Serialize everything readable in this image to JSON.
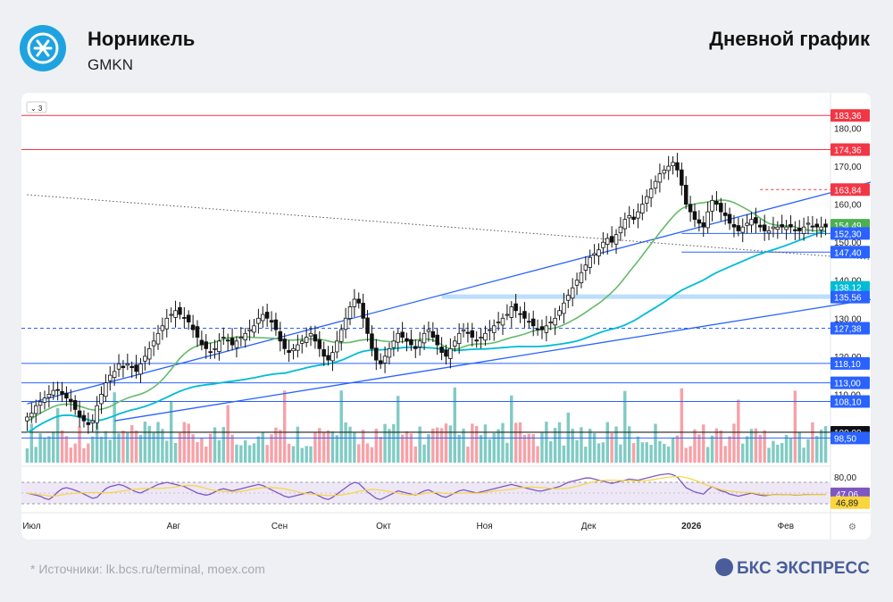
{
  "header": {
    "company_name": "Норникель",
    "ticker": "GMKN",
    "chart_title": "Дневной график",
    "logo_icon": "nornickel-logo-icon"
  },
  "footer": {
    "sources": "*  Источники: lk.bcs.ru/terminal, moex.com",
    "brand": "БКС ЭКСПРЕСС"
  },
  "colors": {
    "up": "#ffffff",
    "down": "#111111",
    "trend": "#2962ff",
    "red_level": "#f23645",
    "ma_green": "#66bb6a",
    "ma_cyan": "#00bcd4",
    "volume_up": "#80cbc4",
    "volume_down": "#f7a1a8",
    "rsi_line": "#7e57c2",
    "rsi_signal": "#f9d53f",
    "rsi_band": "#ede7f6"
  },
  "chart_data": {
    "type": "candlestick",
    "price_axis": {
      "ylim": [
        92,
        186
      ],
      "ticks": [
        "180,00",
        "170,00",
        "160,00",
        "150,00",
        "140,00",
        "130,00",
        "120,00",
        "110,00"
      ],
      "tick_values": [
        180,
        170,
        160,
        150,
        140,
        130,
        120,
        110
      ]
    },
    "x_axis": {
      "labels": [
        "Июл",
        "Авг",
        "Сен",
        "Окт",
        "Ноя",
        "Дек",
        "2026",
        "Фев"
      ],
      "label_index": [
        1,
        34,
        58,
        82,
        105,
        129,
        152,
        174
      ],
      "bold": [
        "2026"
      ]
    },
    "price_labels": [
      {
        "text": "183,36",
        "value": 183.36,
        "kind": "red"
      },
      {
        "text": "174,36",
        "value": 174.36,
        "kind": "red"
      },
      {
        "text": "163,84",
        "value": 163.84,
        "kind": "red"
      },
      {
        "text": "154,49",
        "value": 154.49,
        "kind": "green"
      },
      {
        "text": "152,30",
        "value": 152.3,
        "kind": "blue"
      },
      {
        "text": "147,40",
        "value": 147.4,
        "kind": "blue"
      },
      {
        "text": "138,12",
        "value": 138.12,
        "kind": "cyan"
      },
      {
        "text": "135,56",
        "value": 135.56,
        "kind": "blue"
      },
      {
        "text": "127,38",
        "value": 127.38,
        "kind": "blue"
      },
      {
        "text": "118,10",
        "value": 118.1,
        "kind": "blue"
      },
      {
        "text": "113,00",
        "value": 113.0,
        "kind": "blue"
      },
      {
        "text": "108,10",
        "value": 108.1,
        "kind": "blue"
      },
      {
        "text": "100,00",
        "value": 100.0,
        "kind": "black"
      },
      {
        "text": "98,50",
        "value": 98.5,
        "kind": "blue"
      }
    ],
    "levels": [
      {
        "value": 183.36,
        "style": "red"
      },
      {
        "value": 174.36,
        "style": "red"
      },
      {
        "value": 163.84,
        "style": "red-dash-right"
      },
      {
        "value": 152.3,
        "style": "blue-right-short"
      },
      {
        "value": 147.4,
        "style": "blue-right-short"
      },
      {
        "value": 135.56,
        "style": "blue-band"
      },
      {
        "value": 127.38,
        "style": "blue-dashed"
      },
      {
        "value": 118.1,
        "style": "blue"
      },
      {
        "value": 113.0,
        "style": "blue"
      },
      {
        "value": 108.1,
        "style": "blue"
      },
      {
        "value": 100.0,
        "style": "black"
      },
      {
        "value": 98.5,
        "style": "blue"
      }
    ],
    "trendlines": [
      {
        "from": [
          0,
          107.5
        ],
        "to": [
          199,
          167.5
        ],
        "style": "solid"
      },
      {
        "from": [
          20,
          103.0
        ],
        "to": [
          199,
          136.0
        ],
        "style": "solid"
      },
      {
        "from": [
          0,
          162.5
        ],
        "to": [
          199,
          145.0
        ],
        "style": "dotted"
      }
    ],
    "closes": [
      104,
      105,
      107,
      108,
      109,
      110,
      111,
      111,
      110,
      109,
      108,
      106,
      104,
      103,
      102,
      103,
      107,
      110,
      113,
      115,
      116,
      118,
      117,
      118,
      117,
      116,
      118,
      120,
      122,
      124,
      126,
      128,
      130,
      131,
      132,
      131,
      130,
      129,
      127,
      125,
      123,
      122,
      121,
      122,
      124,
      125,
      124,
      123,
      124,
      125,
      126,
      127,
      128,
      130,
      131,
      130,
      129,
      127,
      124,
      122,
      121,
      122,
      123,
      124,
      125,
      126,
      124,
      122,
      120,
      119,
      121,
      124,
      127,
      130,
      133,
      135,
      134,
      130,
      126,
      122,
      119,
      118,
      120,
      122,
      124,
      126,
      125,
      124,
      123,
      122,
      124,
      126,
      127,
      125,
      123,
      121,
      120,
      122,
      124,
      126,
      127,
      126,
      125,
      124,
      125,
      126,
      127,
      128,
      129,
      130,
      131,
      133,
      132,
      131,
      130,
      129,
      128,
      127,
      127,
      128,
      129,
      130,
      132,
      134,
      136,
      138,
      140,
      142,
      144,
      146,
      147,
      148,
      150,
      151,
      150,
      152,
      154,
      156,
      157,
      156,
      158,
      160,
      162,
      164,
      166,
      168,
      169,
      170,
      171,
      169,
      165,
      160,
      158,
      156,
      155,
      154,
      158,
      161,
      160,
      158,
      157,
      155,
      154,
      153,
      154,
      155,
      156,
      155,
      154,
      153,
      153,
      154,
      154,
      154,
      154,
      154,
      153,
      153,
      154,
      155,
      154,
      154,
      154,
      154
    ],
    "volume_axis": {
      "tick": "100,00"
    },
    "rsi": {
      "ticks": [
        "80,00"
      ],
      "labels": [
        {
          "text": "47,06",
          "kind": "purple"
        },
        {
          "text": "46,89",
          "kind": "yellow"
        }
      ],
      "values": [
        50,
        48,
        46,
        44,
        40,
        38,
        44,
        52,
        58,
        60,
        58,
        55,
        52,
        48,
        44,
        40,
        42,
        50,
        58,
        62,
        64,
        66,
        64,
        60,
        56,
        52,
        50,
        54,
        58,
        62,
        66,
        68,
        70,
        68,
        66,
        64,
        62,
        58,
        54,
        50,
        48,
        46,
        48,
        52,
        56,
        58,
        56,
        54,
        56,
        58,
        60,
        62,
        64,
        66,
        64,
        60,
        56,
        52,
        48,
        44,
        42,
        44,
        46,
        48,
        50,
        52,
        48,
        44,
        40,
        38,
        42,
        48,
        54,
        60,
        66,
        70,
        68,
        60,
        52,
        46,
        40,
        38,
        42,
        46,
        50,
        54,
        52,
        50,
        48,
        46,
        50,
        54,
        56,
        52,
        48,
        44,
        42,
        46,
        50,
        54,
        56,
        54,
        52,
        50,
        52,
        54,
        56,
        58,
        60,
        62,
        64,
        66,
        64,
        62,
        60,
        58,
        56,
        54,
        54,
        56,
        58,
        60,
        62,
        66,
        70,
        72,
        74,
        76,
        78,
        78,
        76,
        74,
        72,
        70,
        68,
        70,
        72,
        74,
        76,
        75,
        74,
        76,
        78,
        80,
        82,
        84,
        85,
        86,
        84,
        80,
        70,
        60,
        56,
        52,
        50,
        48,
        56,
        62,
        58,
        54,
        52,
        48,
        46,
        44,
        46,
        48,
        50,
        48,
        46,
        45,
        46,
        47,
        47,
        47,
        47,
        47,
        46,
        46,
        47,
        47,
        47,
        47,
        47,
        47
      ],
      "signal": 46.89
    },
    "top_left_badge": "3"
  }
}
